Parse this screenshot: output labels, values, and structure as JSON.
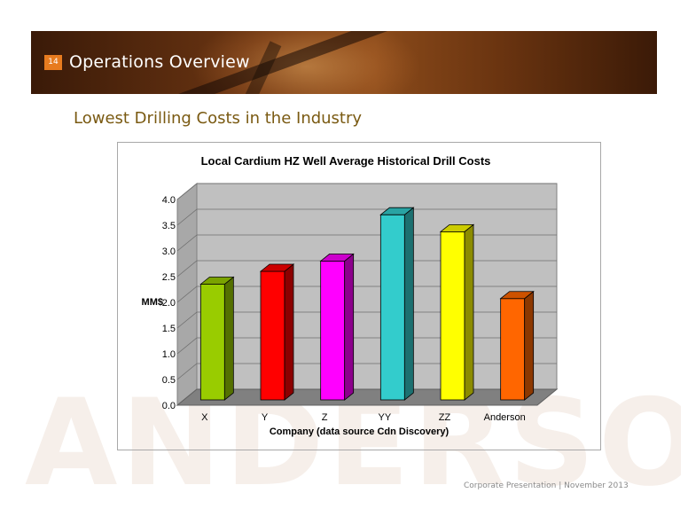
{
  "slide": {
    "page_number": "14",
    "title": "Operations Overview",
    "subtitle": "Lowest Drilling Costs in the Industry",
    "watermark": "ANDERSON",
    "footer": "Corporate Presentation  |  November 2013"
  },
  "chart_data": {
    "type": "bar",
    "title": "Local Cardium HZ Well Average Historical Drill Costs",
    "xlabel": "Company (data source Cdn Discovery)",
    "ylabel": "MM$",
    "categories": [
      "X",
      "Y",
      "Z",
      "YY",
      "ZZ",
      "Anderson"
    ],
    "values": [
      2.25,
      2.5,
      2.7,
      3.6,
      3.27,
      1.97
    ],
    "colors": [
      "#99cc00",
      "#ff0000",
      "#ff00ff",
      "#33cccc",
      "#ffff00",
      "#ff6600"
    ],
    "ylim": [
      0,
      4.0
    ],
    "yticks": [
      "0.0",
      "0.5",
      "1.0",
      "1.5",
      "2.0",
      "2.5",
      "3.0",
      "3.5",
      "4.0"
    ],
    "grid": true,
    "legend": "none",
    "style": "3d"
  }
}
